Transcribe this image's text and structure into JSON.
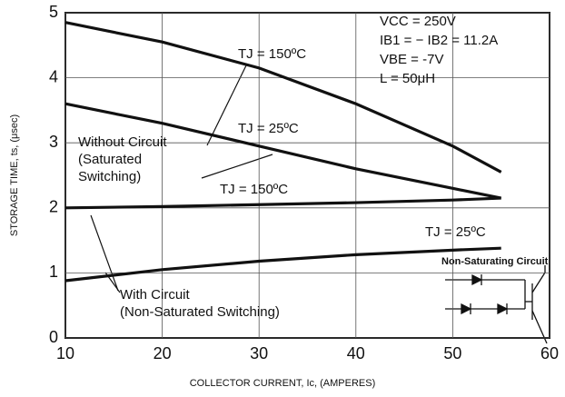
{
  "chart_data": {
    "type": "line",
    "x_label": "COLLECTOR CURRENT, Ic, (AMPERES)",
    "y_label": "STORAGE TIME, ts, (μsec)",
    "x": [
      10,
      20,
      30,
      40,
      50,
      55
    ],
    "series": [
      {
        "name": "TJ = 150ºC",
        "color": "#111111",
        "values": [
          4.85,
          4.55,
          4.15,
          3.6,
          2.95,
          2.55
        ]
      },
      {
        "name": "TJ = 25ºC",
        "color": "#111111",
        "values": [
          3.6,
          3.3,
          2.95,
          2.6,
          2.3,
          2.15
        ]
      },
      {
        "name": "TJ = 150ºC",
        "color": "#111111",
        "values": [
          2.0,
          2.02,
          2.05,
          2.08,
          2.12,
          2.15
        ]
      },
      {
        "name": "TJ = 25ºC",
        "color": "#111111",
        "values": [
          0.88,
          1.05,
          1.18,
          1.28,
          1.35,
          1.38
        ]
      }
    ],
    "xlim": [
      10,
      60
    ],
    "xticks": [
      10,
      20,
      30,
      40,
      50,
      60
    ],
    "ylim": [
      0,
      5
    ],
    "yticks": [
      0,
      1,
      2,
      3,
      4,
      5
    ],
    "grid": true,
    "annotations": {
      "without_circuit": [
        "Without Circuit",
        "(Saturated",
        "Switching)"
      ],
      "with_circuit": [
        "With Circuit",
        "(Non-Saturated Switching)"
      ],
      "conditions": [
        "VCC = 250V",
        "IB1 = − IB2 = 11.2A",
        "VBE = -7V",
        "L = 50μH"
      ],
      "schematic": "Non-Saturating Circuit"
    }
  }
}
